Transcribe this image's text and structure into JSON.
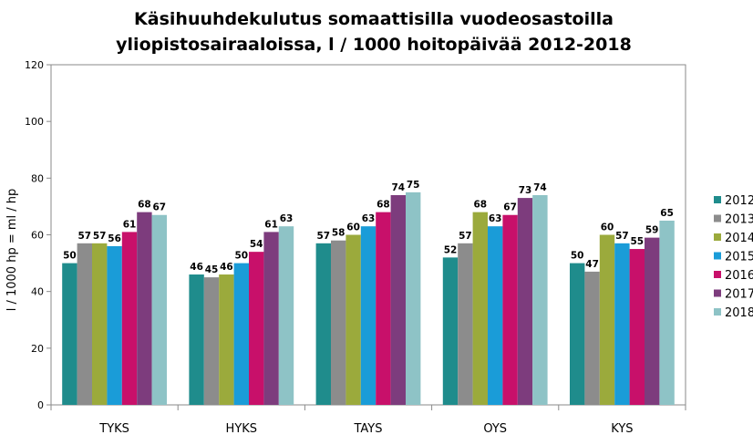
{
  "chart_data": {
    "type": "bar",
    "title_lines": [
      "Käsihuuhdekulutus somaattisilla vuodeosastoilla",
      "yliopistosairaaloissa, l / 1000 hoitopäivää 2012-2018"
    ],
    "ylabel": "l / 1000 hp = ml / hp",
    "xlabel": "",
    "ylim": [
      0,
      120
    ],
    "yticks": [
      0,
      20,
      40,
      60,
      80,
      100,
      120
    ],
    "grid": false,
    "legend_position": "right",
    "categories": [
      "TYKS",
      "HYKS",
      "TAYS",
      "OYS",
      "KYS"
    ],
    "series": [
      {
        "name": "2012",
        "color": "#1F8C8C",
        "values": [
          50,
          46,
          57,
          52,
          50
        ]
      },
      {
        "name": "2013",
        "color": "#8C8C8C",
        "values": [
          57,
          45,
          58,
          57,
          47
        ]
      },
      {
        "name": "2014",
        "color": "#9BAA3C",
        "values": [
          57,
          46,
          60,
          68,
          60
        ]
      },
      {
        "name": "2015",
        "color": "#1A9CD8",
        "values": [
          56,
          50,
          63,
          63,
          57
        ]
      },
      {
        "name": "2016",
        "color": "#C8106A",
        "values": [
          61,
          54,
          68,
          67,
          55
        ]
      },
      {
        "name": "2017",
        "color": "#7D3C7D",
        "values": [
          68,
          61,
          74,
          73,
          59
        ]
      },
      {
        "name": "2018",
        "color": "#8EC3C6",
        "values": [
          67,
          63,
          75,
          74,
          65
        ]
      }
    ]
  }
}
